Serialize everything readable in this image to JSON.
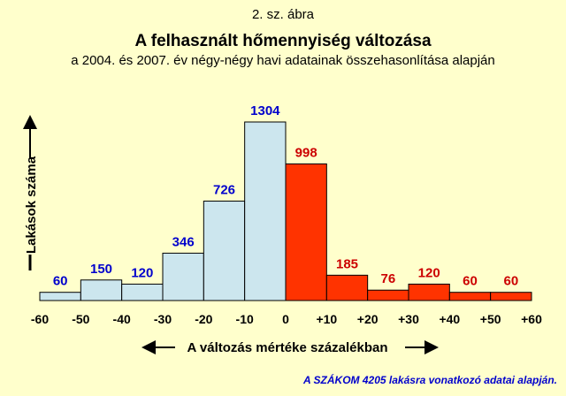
{
  "figure_label": "2. sz. ábra",
  "title": "A felhasznált hőmennyiség változása",
  "subtitle": "a 2004. és 2007. év négy-négy havi adatainak összehasonlítása alapján",
  "footnote": "A SZÁKOM 4205 lakásra vonatkozó adatai alapján.",
  "chart_data": {
    "type": "bar",
    "title": "A felhasznált hőmennyiség változása",
    "subtitle": "a 2004. és 2007. év négy-négy havi adatainak összehasonlítása alapján",
    "xlabel": "A változás mértéke százalékban",
    "ylabel": "Lakások száma",
    "x_ticks": [
      "-60",
      "-50",
      "-40",
      "-30",
      "-20",
      "-10",
      "0",
      "+10",
      "+20",
      "+30",
      "+40",
      "+50",
      "+60"
    ],
    "bins": [
      {
        "from": -60,
        "to": -50,
        "value": 60
      },
      {
        "from": -50,
        "to": -40,
        "value": 150
      },
      {
        "from": -40,
        "to": -30,
        "value": 120
      },
      {
        "from": -30,
        "to": -20,
        "value": 346
      },
      {
        "from": -20,
        "to": -10,
        "value": 726
      },
      {
        "from": -10,
        "to": 0,
        "value": 1304
      },
      {
        "from": 0,
        "to": 10,
        "value": 998
      },
      {
        "from": 10,
        "to": 20,
        "value": 185
      },
      {
        "from": 20,
        "to": 30,
        "value": 76
      },
      {
        "from": 30,
        "to": 40,
        "value": 120
      },
      {
        "from": 40,
        "to": 50,
        "value": 60
      },
      {
        "from": 50,
        "to": 60,
        "value": 60
      }
    ],
    "colors": {
      "negative": "#cce6ee",
      "positive": "#ff3300",
      "negative_label": "#0000cc",
      "positive_label": "#cc0000"
    },
    "grid": false,
    "legend": "none"
  }
}
